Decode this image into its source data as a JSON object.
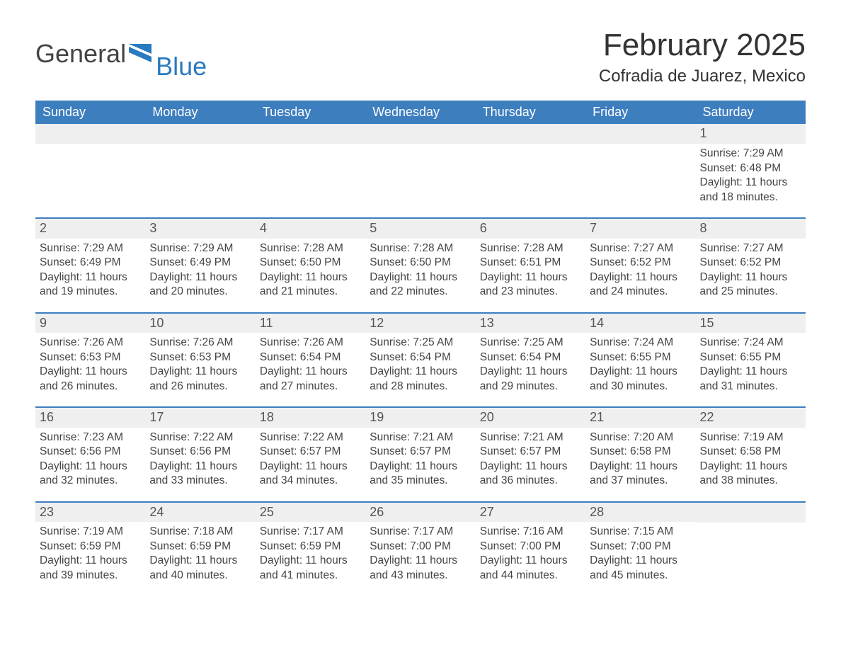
{
  "logo": {
    "word1": "General",
    "word2": "Blue"
  },
  "title": "February 2025",
  "subtitle": "Cofradia de Juarez, Mexico",
  "colors": {
    "header_blue": "#3d7ebf",
    "stripe": "#efeff0",
    "row_divider": "#3d7ebf",
    "brand_blue": "#2a7ac0",
    "text": "#333333",
    "bg": "#ffffff"
  },
  "dayHeaders": [
    "Sunday",
    "Monday",
    "Tuesday",
    "Wednesday",
    "Thursday",
    "Friday",
    "Saturday"
  ],
  "labels": {
    "sunrise": "Sunrise: ",
    "sunset": "Sunset: ",
    "daylight_prefix": "Daylight: ",
    "daylight_mid": " hours and ",
    "daylight_suffix": " minutes."
  },
  "weeks": [
    [
      null,
      null,
      null,
      null,
      null,
      null,
      {
        "n": 1,
        "sunrise": "7:29 AM",
        "sunset": "6:48 PM",
        "dl_h": 11,
        "dl_m": 18
      }
    ],
    [
      {
        "n": 2,
        "sunrise": "7:29 AM",
        "sunset": "6:49 PM",
        "dl_h": 11,
        "dl_m": 19
      },
      {
        "n": 3,
        "sunrise": "7:29 AM",
        "sunset": "6:49 PM",
        "dl_h": 11,
        "dl_m": 20
      },
      {
        "n": 4,
        "sunrise": "7:28 AM",
        "sunset": "6:50 PM",
        "dl_h": 11,
        "dl_m": 21
      },
      {
        "n": 5,
        "sunrise": "7:28 AM",
        "sunset": "6:50 PM",
        "dl_h": 11,
        "dl_m": 22
      },
      {
        "n": 6,
        "sunrise": "7:28 AM",
        "sunset": "6:51 PM",
        "dl_h": 11,
        "dl_m": 23
      },
      {
        "n": 7,
        "sunrise": "7:27 AM",
        "sunset": "6:52 PM",
        "dl_h": 11,
        "dl_m": 24
      },
      {
        "n": 8,
        "sunrise": "7:27 AM",
        "sunset": "6:52 PM",
        "dl_h": 11,
        "dl_m": 25
      }
    ],
    [
      {
        "n": 9,
        "sunrise": "7:26 AM",
        "sunset": "6:53 PM",
        "dl_h": 11,
        "dl_m": 26
      },
      {
        "n": 10,
        "sunrise": "7:26 AM",
        "sunset": "6:53 PM",
        "dl_h": 11,
        "dl_m": 26
      },
      {
        "n": 11,
        "sunrise": "7:26 AM",
        "sunset": "6:54 PM",
        "dl_h": 11,
        "dl_m": 27
      },
      {
        "n": 12,
        "sunrise": "7:25 AM",
        "sunset": "6:54 PM",
        "dl_h": 11,
        "dl_m": 28
      },
      {
        "n": 13,
        "sunrise": "7:25 AM",
        "sunset": "6:54 PM",
        "dl_h": 11,
        "dl_m": 29
      },
      {
        "n": 14,
        "sunrise": "7:24 AM",
        "sunset": "6:55 PM",
        "dl_h": 11,
        "dl_m": 30
      },
      {
        "n": 15,
        "sunrise": "7:24 AM",
        "sunset": "6:55 PM",
        "dl_h": 11,
        "dl_m": 31
      }
    ],
    [
      {
        "n": 16,
        "sunrise": "7:23 AM",
        "sunset": "6:56 PM",
        "dl_h": 11,
        "dl_m": 32
      },
      {
        "n": 17,
        "sunrise": "7:22 AM",
        "sunset": "6:56 PM",
        "dl_h": 11,
        "dl_m": 33
      },
      {
        "n": 18,
        "sunrise": "7:22 AM",
        "sunset": "6:57 PM",
        "dl_h": 11,
        "dl_m": 34
      },
      {
        "n": 19,
        "sunrise": "7:21 AM",
        "sunset": "6:57 PM",
        "dl_h": 11,
        "dl_m": 35
      },
      {
        "n": 20,
        "sunrise": "7:21 AM",
        "sunset": "6:57 PM",
        "dl_h": 11,
        "dl_m": 36
      },
      {
        "n": 21,
        "sunrise": "7:20 AM",
        "sunset": "6:58 PM",
        "dl_h": 11,
        "dl_m": 37
      },
      {
        "n": 22,
        "sunrise": "7:19 AM",
        "sunset": "6:58 PM",
        "dl_h": 11,
        "dl_m": 38
      }
    ],
    [
      {
        "n": 23,
        "sunrise": "7:19 AM",
        "sunset": "6:59 PM",
        "dl_h": 11,
        "dl_m": 39
      },
      {
        "n": 24,
        "sunrise": "7:18 AM",
        "sunset": "6:59 PM",
        "dl_h": 11,
        "dl_m": 40
      },
      {
        "n": 25,
        "sunrise": "7:17 AM",
        "sunset": "6:59 PM",
        "dl_h": 11,
        "dl_m": 41
      },
      {
        "n": 26,
        "sunrise": "7:17 AM",
        "sunset": "7:00 PM",
        "dl_h": 11,
        "dl_m": 43
      },
      {
        "n": 27,
        "sunrise": "7:16 AM",
        "sunset": "7:00 PM",
        "dl_h": 11,
        "dl_m": 44
      },
      {
        "n": 28,
        "sunrise": "7:15 AM",
        "sunset": "7:00 PM",
        "dl_h": 11,
        "dl_m": 45
      },
      null
    ]
  ]
}
